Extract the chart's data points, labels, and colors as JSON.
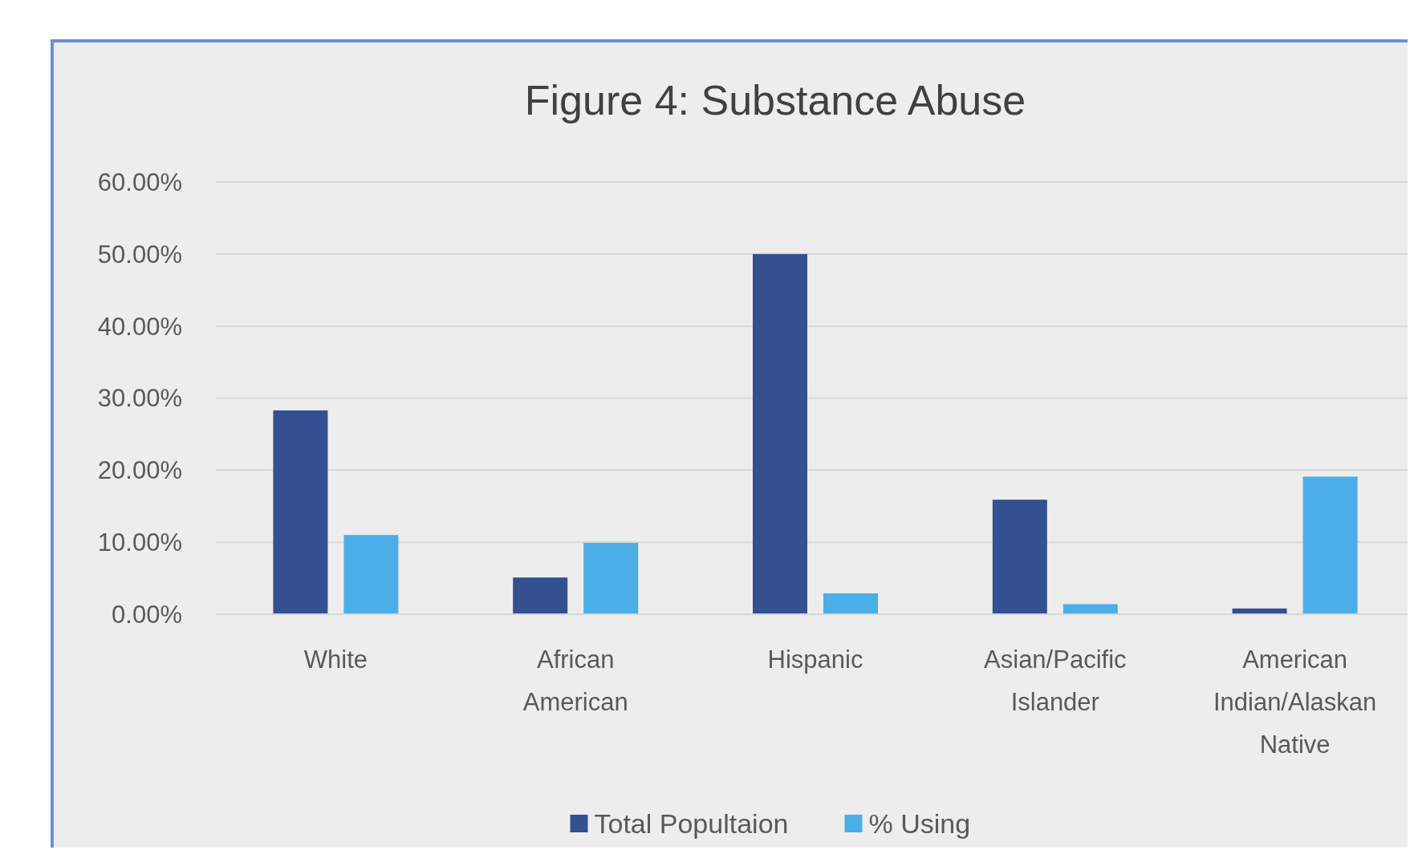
{
  "chart_data": {
    "type": "bar",
    "title": "Figure 4: Substance Abuse",
    "categories": [
      "White",
      "African American",
      "Hispanic",
      "Asian/Pacific Islander",
      "American Indian/Alaskan Native"
    ],
    "series": [
      {
        "name": "Total Popultaion",
        "color": "#335091",
        "values": [
          28.3,
          5.1,
          50,
          15.9,
          0.8
        ]
      },
      {
        "name": "% Using",
        "color": "#4baee8",
        "values": [
          11,
          9.9,
          2.9,
          1.4,
          19.1
        ]
      }
    ],
    "ylim": [
      0,
      60
    ],
    "yticks": [
      {
        "value": 0,
        "label": "0.00%"
      },
      {
        "value": 10,
        "label": "10.00%"
      },
      {
        "value": 20,
        "label": "20.00%"
      },
      {
        "value": 30,
        "label": "30.00%"
      },
      {
        "value": 40,
        "label": "40.00%"
      },
      {
        "value": 50,
        "label": "50.00%"
      },
      {
        "value": 60,
        "label": "60.00%"
      }
    ],
    "grid": "y",
    "legend": "bottom"
  }
}
